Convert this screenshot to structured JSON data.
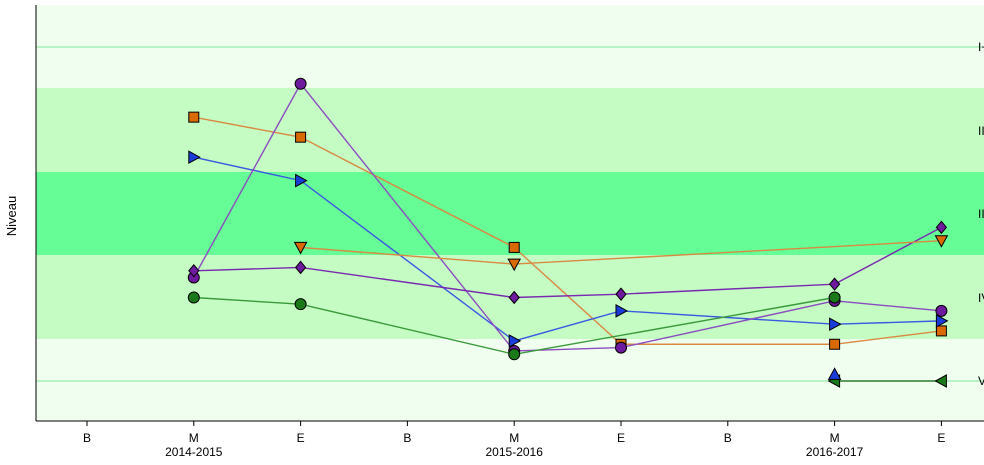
{
  "chart_data": {
    "type": "line",
    "ylabel": "Niveau",
    "x_ticks": [
      "B",
      "M",
      "E",
      "B",
      "M",
      "E",
      "B",
      "M",
      "E"
    ],
    "x_groups": [
      "2014-2015",
      "2015-2016",
      "2016-2017"
    ],
    "band_labels": [
      "I+",
      "III",
      "II",
      "IV",
      "V"
    ],
    "band_colors": [
      "#f0fef0",
      "#c4fcc4",
      "#66fc96",
      "#c4fcc4",
      "#f0fef0"
    ],
    "ylim": [
      0,
      100
    ],
    "series": [
      {
        "color": "#d96a00",
        "stroke": "#d98a40",
        "marker": "square",
        "points": [
          [
            1,
            79
          ],
          [
            2,
            73
          ],
          [
            4,
            40
          ],
          [
            5,
            11
          ],
          [
            7,
            11
          ],
          [
            8,
            15
          ]
        ]
      },
      {
        "color": "#1a3dd9",
        "stroke": "#3a5ae0",
        "marker": "tri-right",
        "points": [
          [
            1,
            67
          ],
          [
            2,
            60
          ],
          [
            4,
            12
          ],
          [
            5,
            21
          ],
          [
            7,
            17
          ],
          [
            8,
            18
          ]
        ]
      },
      {
        "color": "#6e1a9e",
        "stroke": "#8b4cc0",
        "marker": "circle",
        "points": [
          [
            1,
            31
          ],
          [
            2,
            89
          ],
          [
            4,
            9
          ],
          [
            5,
            10
          ],
          [
            7,
            24
          ],
          [
            8,
            21
          ]
        ]
      },
      {
        "color": "#6e1a9e",
        "stroke": "#7a2ab0",
        "marker": "diamond",
        "points": [
          [
            1,
            33
          ],
          [
            2,
            34
          ],
          [
            4,
            25
          ],
          [
            5,
            26
          ],
          [
            7,
            29
          ],
          [
            8,
            46
          ]
        ]
      },
      {
        "color": "#d96a00",
        "stroke": "#d98a40",
        "marker": "tri-down",
        "points": [
          [
            2,
            40
          ],
          [
            4,
            35
          ],
          [
            8,
            42
          ]
        ]
      },
      {
        "color": "#1a7a1a",
        "stroke": "#3a9a3a",
        "marker": "circle",
        "points": [
          [
            1,
            25
          ],
          [
            2,
            23
          ],
          [
            4,
            8
          ],
          [
            7,
            25
          ]
        ]
      },
      {
        "color": "#1a7a1a",
        "stroke": "#2a7a2a",
        "marker": "tri-left",
        "points": [
          [
            7,
            0
          ],
          [
            8,
            0
          ]
        ]
      },
      {
        "color": "#1a3dd9",
        "stroke": "#3a5ae0",
        "marker": "tri-up",
        "points": [
          [
            7,
            2
          ]
        ]
      }
    ]
  }
}
